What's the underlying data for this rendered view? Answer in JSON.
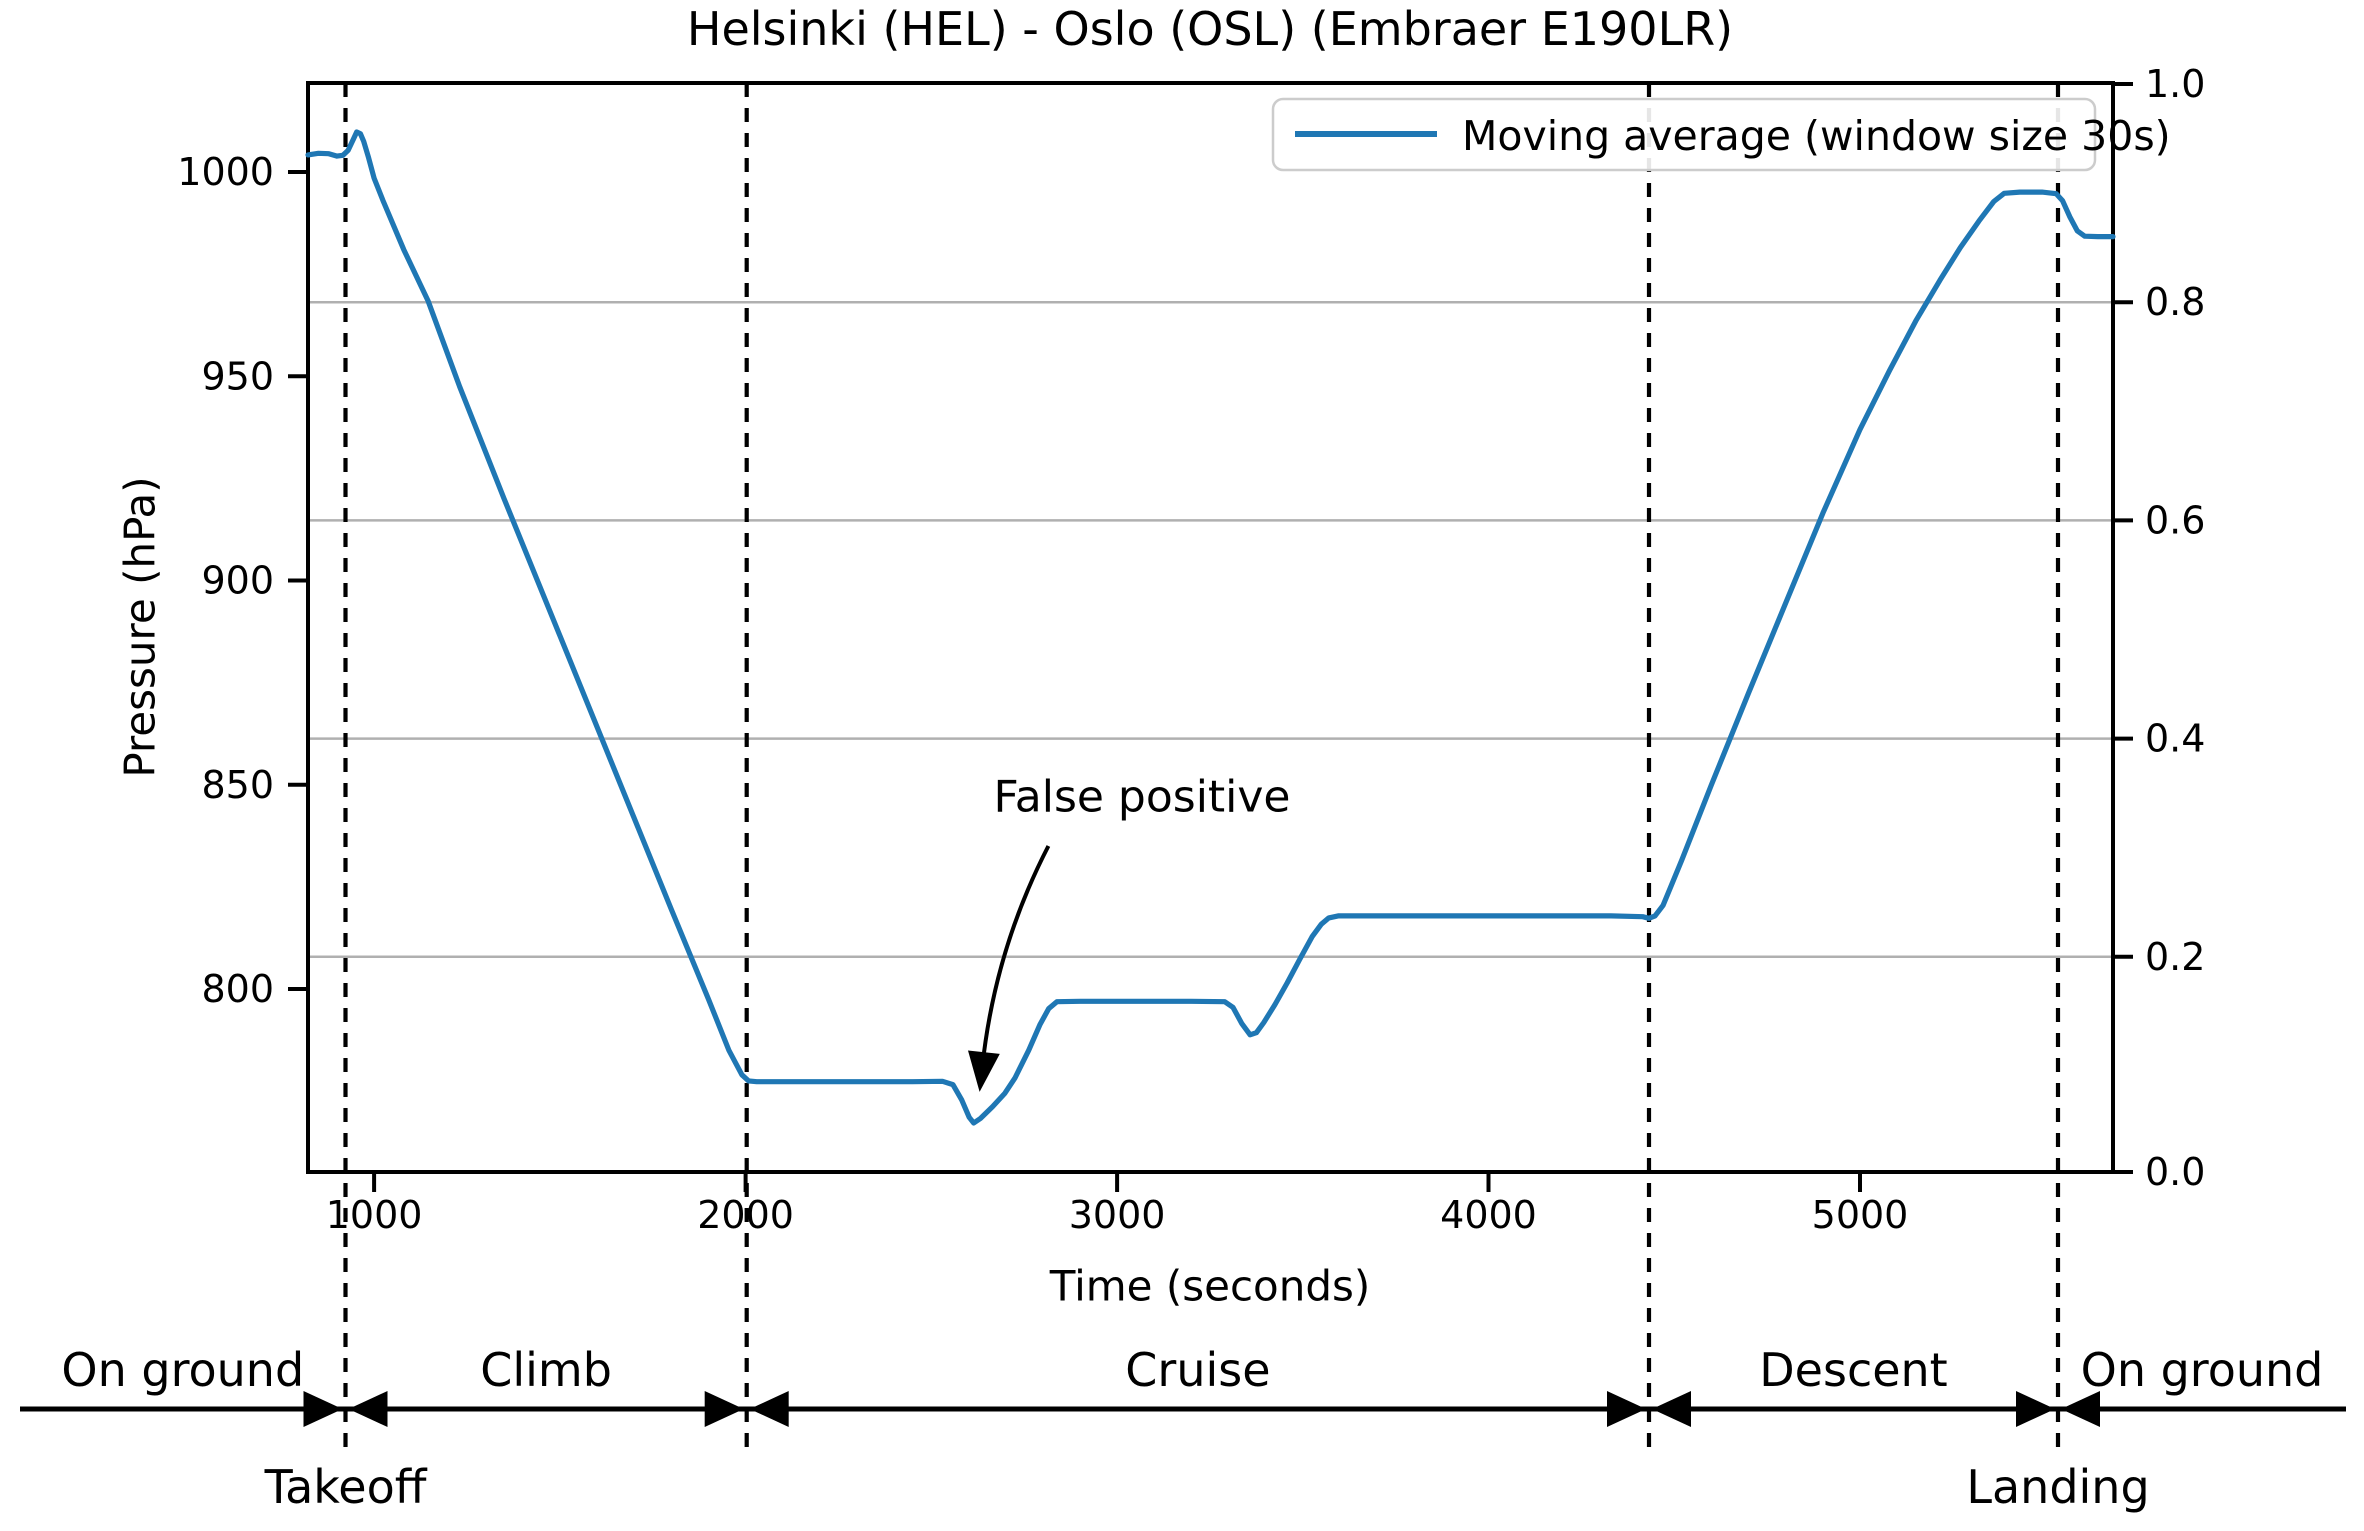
{
  "chart_data": {
    "type": "line",
    "title": "Helsinki (HEL) - Oslo (OSL) (Embraer E190LR)",
    "xlabel": "Time (seconds)",
    "ylabel": "Pressure (hPa)",
    "xlim": [
      822,
      5681
    ],
    "ylim": [
      755.2,
      1021.8
    ],
    "ylim_right": [
      0.0,
      1.0
    ],
    "x_ticks": {
      "values": [
        1000,
        2000,
        3000,
        4000,
        5000
      ],
      "labels": [
        "1000",
        "2000",
        "3000",
        "4000",
        "5000"
      ]
    },
    "y_ticks_left": {
      "values": [
        1000,
        950,
        900,
        850,
        800
      ],
      "labels": [
        "1000",
        "950",
        "900",
        "850",
        "800"
      ]
    },
    "y_ticks_right": {
      "values": [
        1.0,
        0.8,
        0.6,
        0.4,
        0.2,
        0.0
      ],
      "labels": [
        "1.0",
        "0.8",
        "0.6",
        "0.4",
        "0.2",
        "0.0"
      ]
    },
    "grid": {
      "right_axis_values": [
        0.8,
        0.6,
        0.4,
        0.2
      ]
    },
    "legend": {
      "label": "Moving average (window size 30s)",
      "position": "upper right"
    },
    "series": [
      {
        "name": "Moving average (window size 30s)",
        "color": "#1f77b4",
        "points": [
          [
            822,
            1004.2
          ],
          [
            850,
            1004.6
          ],
          [
            878,
            1004.5
          ],
          [
            900,
            1003.9
          ],
          [
            916,
            1004.1
          ],
          [
            930,
            1005.3
          ],
          [
            944,
            1008.0
          ],
          [
            953,
            1009.8
          ],
          [
            963,
            1009.4
          ],
          [
            972,
            1007.5
          ],
          [
            985,
            1003.5
          ],
          [
            1000,
            998.5
          ],
          [
            1024,
            993.0
          ],
          [
            1080,
            981.0
          ],
          [
            1145,
            968.5
          ],
          [
            1230,
            947.5
          ],
          [
            1350,
            920.0
          ],
          [
            1500,
            886.5
          ],
          [
            1650,
            853.0
          ],
          [
            1800,
            819.5
          ],
          [
            1900,
            797.5
          ],
          [
            1955,
            785.0
          ],
          [
            1990,
            779.0
          ],
          [
            2008,
            777.5
          ],
          [
            2030,
            777.3
          ],
          [
            2150,
            777.3
          ],
          [
            2300,
            777.3
          ],
          [
            2450,
            777.3
          ],
          [
            2530,
            777.4
          ],
          [
            2558,
            776.6
          ],
          [
            2582,
            772.8
          ],
          [
            2602,
            768.6
          ],
          [
            2614,
            767.2
          ],
          [
            2632,
            768.3
          ],
          [
            2665,
            771.2
          ],
          [
            2698,
            774.5
          ],
          [
            2725,
            778.2
          ],
          [
            2762,
            785.0
          ],
          [
            2792,
            791.2
          ],
          [
            2816,
            795.2
          ],
          [
            2838,
            796.9
          ],
          [
            2900,
            797.0
          ],
          [
            3050,
            797.0
          ],
          [
            3200,
            797.0
          ],
          [
            3290,
            796.9
          ],
          [
            3312,
            795.5
          ],
          [
            3336,
            791.5
          ],
          [
            3358,
            788.8
          ],
          [
            3375,
            789.3
          ],
          [
            3395,
            791.8
          ],
          [
            3425,
            796.2
          ],
          [
            3458,
            801.5
          ],
          [
            3492,
            807.3
          ],
          [
            3525,
            812.8
          ],
          [
            3550,
            815.9
          ],
          [
            3570,
            817.4
          ],
          [
            3595,
            817.9
          ],
          [
            3750,
            817.9
          ],
          [
            3950,
            817.9
          ],
          [
            4150,
            817.9
          ],
          [
            4330,
            817.9
          ],
          [
            4415,
            817.7
          ],
          [
            4432,
            817.3
          ],
          [
            4448,
            817.9
          ],
          [
            4470,
            820.5
          ],
          [
            4520,
            831.5
          ],
          [
            4600,
            850.0
          ],
          [
            4700,
            872.5
          ],
          [
            4800,
            894.5
          ],
          [
            4900,
            916.5
          ],
          [
            5000,
            937.0
          ],
          [
            5080,
            951.5
          ],
          [
            5150,
            963.5
          ],
          [
            5215,
            973.5
          ],
          [
            5270,
            981.5
          ],
          [
            5320,
            988.0
          ],
          [
            5360,
            992.8
          ],
          [
            5388,
            994.8
          ],
          [
            5430,
            995.1
          ],
          [
            5490,
            995.1
          ],
          [
            5528,
            994.7
          ],
          [
            5545,
            993.0
          ],
          [
            5565,
            989.0
          ],
          [
            5585,
            985.6
          ],
          [
            5605,
            984.3
          ],
          [
            5640,
            984.2
          ],
          [
            5681,
            984.2
          ]
        ]
      }
    ],
    "phase_boundaries_s": [
      923,
      2003,
      4432,
      5533
    ],
    "phases": [
      "On ground",
      "Climb",
      "Cruise",
      "Descent",
      "On ground"
    ],
    "phase_events": [
      {
        "label": "Takeoff",
        "t": 923
      },
      {
        "label": "Landing",
        "t": 5533
      }
    ],
    "annotation": {
      "text": "False positive",
      "text_at": [
        3067,
        847
      ],
      "arrow_start": [
        2815,
        835
      ],
      "arrow_ctrl": [
        2671,
        809.6
      ],
      "arrow_end": [
        2630,
        774.8
      ]
    },
    "colors": {
      "line": "#1f77b4",
      "grid": "#b0b0b0",
      "axes": "#000000",
      "background": "#ffffff",
      "legend_border": "#cccccc"
    }
  }
}
